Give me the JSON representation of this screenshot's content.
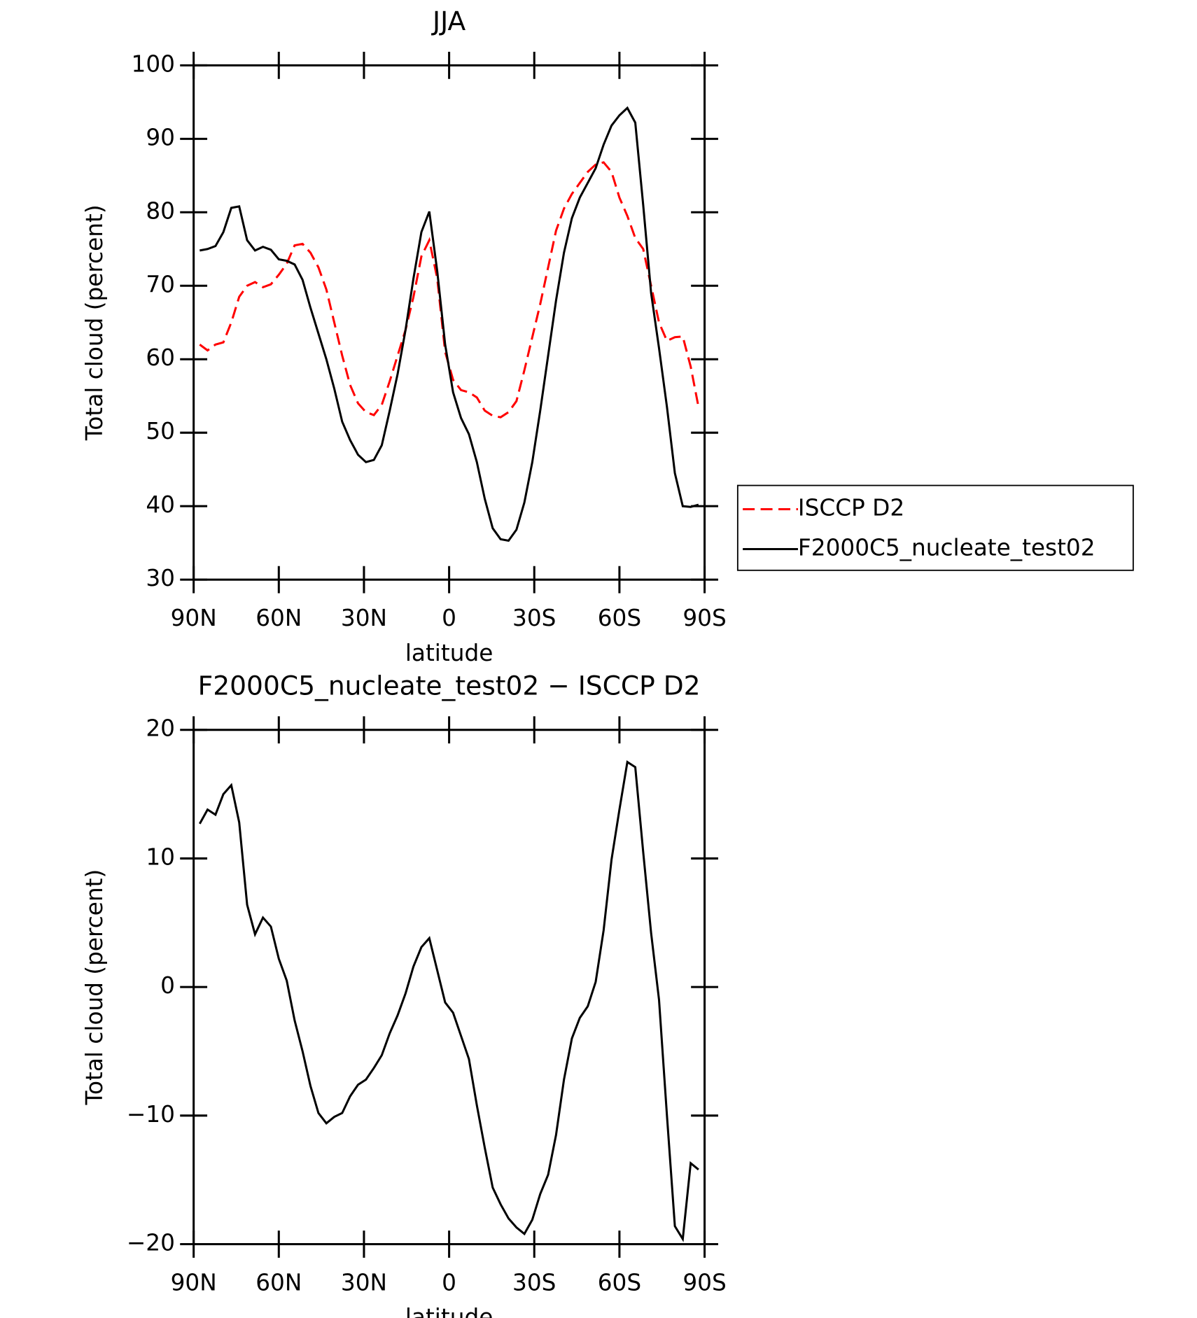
{
  "chart_data": [
    {
      "type": "line",
      "title": "JJA",
      "xlabel": "latitude",
      "ylabel": "Total cloud (percent)",
      "x": [
        87.86,
        85.1,
        82.31,
        79.53,
        76.74,
        73.95,
        71.16,
        68.37,
        65.58,
        62.79,
        60.0,
        57.21,
        54.42,
        51.63,
        48.84,
        46.04,
        43.25,
        40.46,
        37.67,
        34.88,
        32.09,
        29.3,
        26.51,
        23.72,
        20.93,
        18.14,
        15.35,
        12.56,
        9.77,
        6.98,
        4.19,
        1.4,
        -1.4,
        -4.19,
        -6.98,
        -9.77,
        -12.56,
        -15.35,
        -18.14,
        -20.93,
        -23.72,
        -26.51,
        -29.3,
        -32.09,
        -34.88,
        -37.67,
        -40.46,
        -43.25,
        -46.04,
        -48.84,
        -51.63,
        -54.42,
        -57.21,
        -60.0,
        -62.79,
        -65.58,
        -68.37,
        -71.16,
        -73.95,
        -76.74,
        -79.53,
        -82.31,
        -85.1,
        -87.86
      ],
      "series": [
        {
          "name": "ISCCP D2",
          "color": "#ff0000",
          "dashed": true,
          "values": [
            62,
            61.2,
            62,
            62.3,
            65,
            68.5,
            70,
            70.5,
            69.8,
            70.2,
            71.5,
            73,
            75.5,
            75.7,
            74.5,
            72.5,
            69.5,
            65,
            60.5,
            56.5,
            54,
            52.8,
            52.4,
            53.8,
            57,
            60.5,
            64,
            68.5,
            74,
            76.2,
            71,
            61,
            57.2,
            55.8,
            55.5,
            54.8,
            53,
            52.3,
            52.1,
            52.8,
            54.3,
            58.5,
            63,
            67.5,
            72.5,
            77.5,
            80.5,
            82.5,
            84,
            85.5,
            86.5,
            86.8,
            85.5,
            82,
            79.5,
            76.5,
            75,
            70,
            65,
            62.5,
            63,
            63.1,
            59,
            53.5
          ]
        },
        {
          "name": "F2000C5_nucleate_test02",
          "color": "#000000",
          "dashed": false,
          "values": [
            74.8,
            75,
            75.4,
            77.3,
            80.6,
            80.8,
            76.2,
            74.8,
            75.3,
            74.9,
            73.6,
            73.4,
            72.9,
            70.8,
            67,
            63.5,
            60,
            56,
            51.5,
            49,
            47,
            46,
            46.3,
            48.3,
            53,
            58,
            64,
            71,
            77.3,
            80.1,
            72,
            62,
            55.5,
            52,
            49.8,
            46,
            41,
            37,
            35.5,
            35.3,
            36.8,
            40.5,
            46,
            53,
            60.5,
            68,
            74.5,
            79.2,
            82,
            84,
            86,
            89.2,
            91.8,
            93.2,
            94.2,
            92.2,
            81,
            69,
            61.5,
            53.5,
            44.5,
            40,
            39.9,
            40.2
          ]
        }
      ],
      "xlim": [
        90,
        -90
      ],
      "xticks": [
        {
          "value": 90,
          "label": "90N"
        },
        {
          "value": 60,
          "label": "60N"
        },
        {
          "value": 30,
          "label": "30N"
        },
        0,
        {
          "value": -30,
          "label": "30S"
        },
        {
          "value": -60,
          "label": "60S"
        },
        {
          "value": -90,
          "label": "90S"
        }
      ],
      "ylim": [
        30,
        100
      ],
      "yticks": [
        30,
        40,
        50,
        60,
        70,
        80,
        90,
        100
      ],
      "legend": "right"
    },
    {
      "type": "line",
      "title": "F2000C5_nucleate_test02 − ISCCP D2",
      "xlabel": "latitude",
      "ylabel": "Total cloud (percent)",
      "x": [
        87.86,
        85.1,
        82.31,
        79.53,
        76.74,
        73.95,
        71.16,
        68.37,
        65.58,
        62.79,
        60.0,
        57.21,
        54.42,
        51.63,
        48.84,
        46.04,
        43.25,
        40.46,
        37.67,
        34.88,
        32.09,
        29.3,
        26.51,
        23.72,
        20.93,
        18.14,
        15.35,
        12.56,
        9.77,
        6.98,
        4.19,
        1.4,
        -1.4,
        -4.19,
        -6.98,
        -9.77,
        -12.56,
        -15.35,
        -18.14,
        -20.93,
        -23.72,
        -26.51,
        -29.3,
        -32.09,
        -34.88,
        -37.67,
        -40.46,
        -43.25,
        -46.04,
        -48.84,
        -51.63,
        -54.42,
        -57.21,
        -60.0,
        -62.79,
        -65.58,
        -68.37,
        -71.16,
        -73.95,
        -76.74,
        -79.53,
        -82.31,
        -85.1,
        -87.86
      ],
      "series": [
        {
          "color": "#000000",
          "dashed": false,
          "values": [
            12.7,
            13.8,
            13.4,
            15,
            15.7,
            12.8,
            6.4,
            4.1,
            5.4,
            4.7,
            2.2,
            0.5,
            -2.6,
            -5,
            -7.7,
            -9.8,
            -10.6,
            -10.1,
            -9.8,
            -8.5,
            -7.6,
            -7.2,
            -6.3,
            -5.3,
            -3.6,
            -2.2,
            -0.5,
            1.6,
            3.1,
            3.8,
            1.3,
            -1.2,
            -2,
            -3.8,
            -5.6,
            -9.2,
            -12.5,
            -15.6,
            -16.9,
            -18,
            -18.7,
            -19.2,
            -18.1,
            -16.1,
            -14.6,
            -11.5,
            -7.2,
            -4,
            -2.4,
            -1.5,
            0.4,
            4.4,
            9.9,
            13.8,
            17.5,
            17.1,
            10.5,
            4.2,
            -1,
            -10,
            -18.6,
            -19.6,
            -13.7,
            -14.2
          ]
        }
      ],
      "xlim": [
        90,
        -90
      ],
      "xticks": [
        {
          "value": 90,
          "label": "90N"
        },
        {
          "value": 60,
          "label": "60N"
        },
        {
          "value": 30,
          "label": "30N"
        },
        0,
        {
          "value": -30,
          "label": "30S"
        },
        {
          "value": -60,
          "label": "60S"
        },
        {
          "value": -90,
          "label": "90S"
        }
      ],
      "ylim": [
        -20,
        20
      ],
      "yticks": [
        {
          "value": -20,
          "label": "−20"
        },
        {
          "value": -10,
          "label": "−10"
        },
        0,
        10,
        20
      ]
    }
  ]
}
